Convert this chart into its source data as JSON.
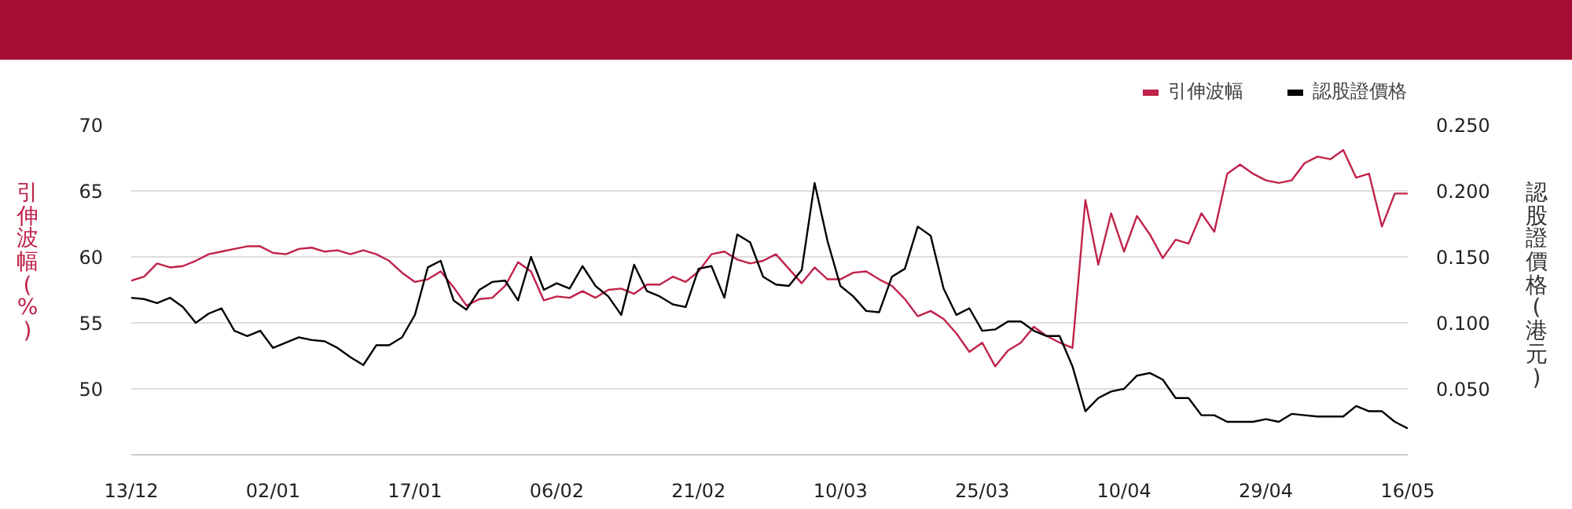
{
  "chart_data": {
    "type": "line",
    "categories": [
      "13/12",
      null,
      null,
      null,
      null,
      null,
      null,
      null,
      null,
      null,
      null,
      "02/01",
      null,
      null,
      null,
      null,
      null,
      null,
      null,
      null,
      null,
      null,
      "17/01",
      null,
      null,
      null,
      null,
      null,
      null,
      null,
      null,
      null,
      null,
      "06/02",
      null,
      null,
      null,
      null,
      null,
      null,
      null,
      null,
      null,
      null,
      "21/02",
      null,
      null,
      null,
      null,
      null,
      null,
      null,
      null,
      null,
      null,
      "10/03",
      null,
      null,
      null,
      null,
      null,
      null,
      null,
      null,
      null,
      null,
      "25/03",
      null,
      null,
      null,
      null,
      null,
      null,
      null,
      null,
      null,
      null,
      "10/04",
      null,
      null,
      null,
      null,
      null,
      null,
      null,
      null,
      null,
      null,
      "29/04",
      null,
      null,
      null,
      null,
      null,
      null,
      null,
      null,
      null,
      null,
      "16/05"
    ],
    "series": [
      {
        "name": "引伸波幅",
        "color": "#c0224a",
        "values": [
          58.2,
          58.5,
          59.5,
          59.2,
          59.3,
          59.7,
          60.2,
          60.4,
          60.6,
          60.8,
          60.8,
          60.3,
          60.2,
          60.6,
          60.7,
          60.4,
          60.5,
          60.2,
          60.5,
          60.2,
          59.7,
          58.8,
          58.1,
          58.3,
          58.9,
          57.7,
          56.3,
          56.8,
          56.9,
          57.8,
          59.6,
          58.9,
          56.7,
          57.0,
          56.9,
          57.4,
          56.9,
          57.5,
          57.6,
          57.2,
          57.9,
          57.9,
          58.5,
          58.1,
          58.9,
          60.2,
          60.4,
          59.8,
          59.5,
          59.7,
          60.2,
          59.1,
          58.0,
          59.2,
          58.3,
          58.3,
          58.8,
          58.9,
          58.3,
          57.8,
          56.8,
          55.5,
          55.9,
          55.3,
          54.2,
          52.8,
          53.5,
          51.7,
          52.9,
          53.5,
          54.7,
          54.0,
          53.5,
          53.1,
          64.3,
          59.4,
          63.3,
          60.4,
          63.1,
          61.7,
          59.9,
          61.3,
          61.0,
          63.3,
          61.9,
          66.3,
          67.0,
          66.3,
          65.8,
          65.6,
          65.8,
          67.1,
          67.6,
          67.4,
          68.1,
          66.0,
          66.3,
          62.3,
          64.8,
          64.8
        ]
      },
      {
        "name": "認股證價格",
        "color": "#000000",
        "axis": "y2",
        "values": [
          0.119,
          0.118,
          0.115,
          0.119,
          0.112,
          0.1,
          0.107,
          0.111,
          0.094,
          0.09,
          0.094,
          0.081,
          0.085,
          0.089,
          0.087,
          0.086,
          0.081,
          0.074,
          0.068,
          0.083,
          0.083,
          0.089,
          0.106,
          0.142,
          0.147,
          0.117,
          0.11,
          0.125,
          0.131,
          0.132,
          0.117,
          0.15,
          0.125,
          0.13,
          0.126,
          0.143,
          0.128,
          0.12,
          0.106,
          0.144,
          0.124,
          0.12,
          0.114,
          0.112,
          0.141,
          0.143,
          0.119,
          0.167,
          0.161,
          0.135,
          0.129,
          0.128,
          0.14,
          0.206,
          0.162,
          0.128,
          0.12,
          0.109,
          0.108,
          0.135,
          0.141,
          0.173,
          0.166,
          0.126,
          0.106,
          0.111,
          0.094,
          0.095,
          0.101,
          0.101,
          0.094,
          0.09,
          0.09,
          0.067,
          0.033,
          0.043,
          0.048,
          0.05,
          0.06,
          0.062,
          0.057,
          0.043,
          0.043,
          0.03,
          0.03,
          0.025,
          0.025,
          0.025,
          0.027,
          0.025,
          0.031,
          0.03,
          0.029,
          0.029,
          0.029,
          0.037,
          0.033,
          0.033,
          0.025,
          0.02
        ]
      }
    ],
    "ylabel": "引伸波幅(%)",
    "y2label": "認股證價格(港元)",
    "ylim": [
      45,
      70
    ],
    "yticks": [
      50,
      55,
      60,
      65,
      70
    ],
    "y2lim": [
      0,
      0.25
    ],
    "y2ticks": [
      {
        "value": 0.05,
        "label": "0.050"
      },
      {
        "value": 0.1,
        "label": "0.100"
      },
      {
        "value": 0.15,
        "label": "0.150"
      },
      {
        "value": 0.2,
        "label": "0.200"
      },
      {
        "value": 0.25,
        "label": "0.250"
      }
    ],
    "grid": "y",
    "legend": "top right",
    "marker": "none",
    "line_style": "solid"
  }
}
